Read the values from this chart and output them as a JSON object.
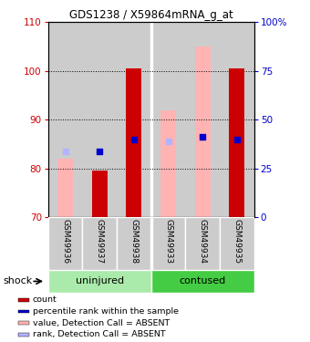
{
  "title": "GDS1238 / X59864mRNA_g_at",
  "samples": [
    "GSM49936",
    "GSM49937",
    "GSM49938",
    "GSM49933",
    "GSM49934",
    "GSM49935"
  ],
  "group_labels": [
    "uninjured",
    "contused"
  ],
  "ylim_left": [
    70,
    110
  ],
  "ylim_right": [
    0,
    100
  ],
  "yticks_left": [
    70,
    80,
    90,
    100,
    110
  ],
  "yticks_right": [
    0,
    25,
    50,
    75,
    100
  ],
  "ytick_labels_right": [
    "0",
    "25",
    "50",
    "75",
    "100%"
  ],
  "red_bars": [
    null,
    79.5,
    100.5,
    null,
    null,
    100.5
  ],
  "pink_bars": [
    82.0,
    null,
    null,
    92.0,
    105.0,
    null
  ],
  "blue_dots": [
    null,
    83.5,
    86.0,
    null,
    86.5,
    86.0
  ],
  "lavender_dots": [
    83.5,
    null,
    null,
    85.5,
    null,
    null
  ],
  "bar_bottom": 70,
  "bar_width": 0.45,
  "dot_size": 25,
  "colors": {
    "red": "#cc0000",
    "pink": "#ffb3b3",
    "blue": "#0000cc",
    "lavender": "#b3b3ff",
    "group_bg_uninjured": "#aaeaaa",
    "group_bg_contused": "#44cc44",
    "sample_bg": "#cccccc",
    "left_axis_color": "#cc0000",
    "right_axis_color": "#0000cc"
  },
  "shock_label": "shock",
  "legend_items": [
    {
      "label": "count",
      "color": "#cc0000"
    },
    {
      "label": "percentile rank within the sample",
      "color": "#0000cc"
    },
    {
      "label": "value, Detection Call = ABSENT",
      "color": "#ffb3b3"
    },
    {
      "label": "rank, Detection Call = ABSENT",
      "color": "#b3b3ff"
    }
  ]
}
